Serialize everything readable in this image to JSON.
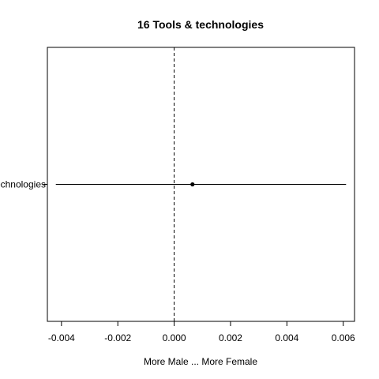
{
  "chart_data": {
    "type": "scatter",
    "title": "16 Tools & technologies",
    "xlabel": "More Male ... More Female",
    "ylabel": "",
    "categories": [
      "Tools & technologies"
    ],
    "estimates": [
      {
        "category": "Tools & technologies",
        "value": 0.00065,
        "ci_low": -0.0042,
        "ci_high": 0.0061
      }
    ],
    "reference_line": {
      "x": 0.0,
      "style": "dashed"
    },
    "xlim": [
      -0.0045,
      0.0064
    ],
    "xticks": [
      -0.004,
      -0.002,
      0.0,
      0.002,
      0.004,
      0.006
    ],
    "xtick_labels": [
      "-0.004",
      "-0.002",
      "0.000",
      "0.002",
      "0.004",
      "0.006"
    ],
    "grid": false,
    "legend": "none"
  }
}
